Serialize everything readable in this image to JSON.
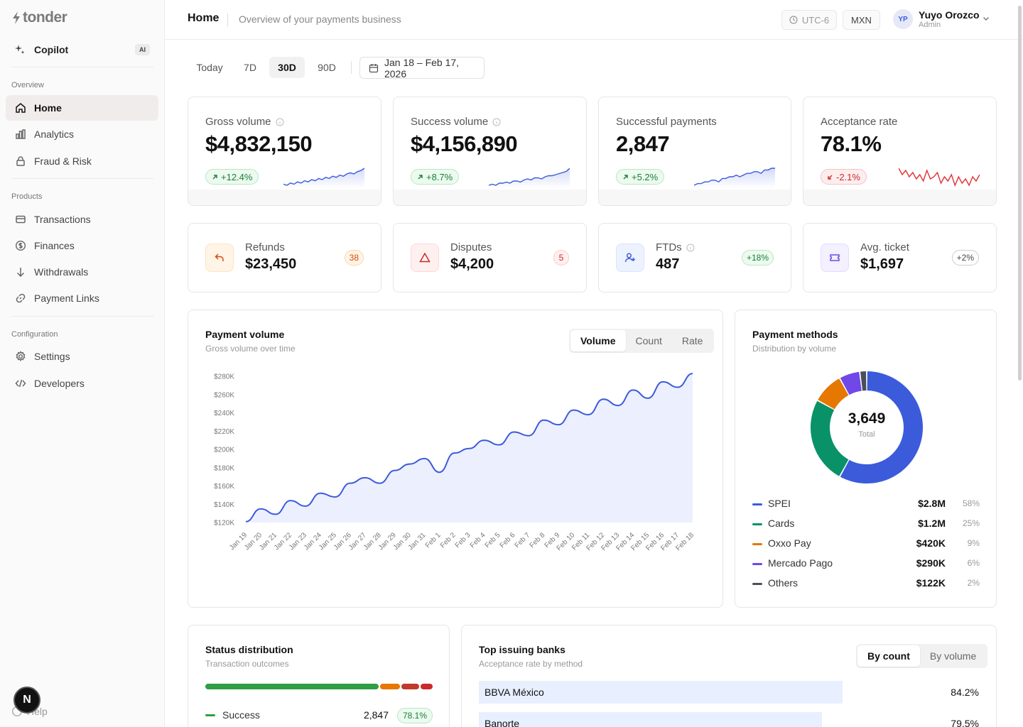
{
  "brand": {
    "name": "tonder"
  },
  "sidebar": {
    "copilot": {
      "label": "Copilot",
      "badge": "AI"
    },
    "sections": [
      {
        "title": "Overview",
        "items": [
          {
            "label": "Home",
            "icon": "home-icon",
            "active": true
          },
          {
            "label": "Analytics",
            "icon": "chart-icon"
          },
          {
            "label": "Fraud & Risk",
            "icon": "lock-icon"
          }
        ]
      },
      {
        "title": "Products",
        "items": [
          {
            "label": "Transactions",
            "icon": "card-icon"
          },
          {
            "label": "Finances",
            "icon": "dollar-icon"
          },
          {
            "label": "Withdrawals",
            "icon": "arrow-down-icon"
          },
          {
            "label": "Payment Links",
            "icon": "link-icon"
          }
        ]
      },
      {
        "title": "Configuration",
        "items": [
          {
            "label": "Settings",
            "icon": "gear-icon"
          },
          {
            "label": "Developers",
            "icon": "code-icon"
          }
        ]
      }
    ],
    "help": "Help",
    "badge_letter": "N"
  },
  "header": {
    "title": "Home",
    "subtitle": "Overview of your payments business",
    "timezone": "UTC-6",
    "currency": "MXN",
    "user": {
      "initials": "YP",
      "name": "Yuyo Orozco",
      "role": "Admin"
    }
  },
  "periods": [
    "Today",
    "7D",
    "30D",
    "90D"
  ],
  "selected_period": "30D",
  "date_range": "Jan 18 – Feb 17, 2026",
  "stats": [
    {
      "label": "Gross volume",
      "value": "$4,832,150",
      "change": "+12.4%",
      "trend": "up",
      "info": true,
      "spark": [
        12,
        11,
        13,
        12,
        14,
        13,
        15,
        14,
        16,
        15,
        17,
        16,
        18,
        17,
        19,
        18,
        20,
        19,
        21,
        22,
        21,
        23,
        24,
        26
      ]
    },
    {
      "label": "Success volume",
      "value": "$4,156,890",
      "change": "+8.7%",
      "trend": "up",
      "info": true,
      "spark": [
        10,
        11,
        10,
        12,
        12,
        13,
        12,
        14,
        14,
        13,
        15,
        16,
        15,
        17,
        17,
        16,
        18,
        19,
        19,
        20,
        21,
        22,
        23,
        26
      ]
    },
    {
      "label": "Successful payments",
      "value": "2,847",
      "change": "+5.2%",
      "trend": "up",
      "info": false,
      "spark": [
        12,
        13,
        13,
        14,
        14,
        15,
        15,
        14,
        16,
        16,
        17,
        17,
        18,
        17,
        18,
        19,
        19,
        20,
        20,
        19,
        21,
        21,
        22,
        22
      ]
    },
    {
      "label": "Acceptance rate",
      "value": "78.1%",
      "change": "-2.1%",
      "trend": "down",
      "info": false,
      "spark": [
        22,
        19,
        21,
        18,
        20,
        17,
        19,
        16,
        21,
        17,
        18,
        20,
        15,
        18,
        16,
        19,
        14,
        18,
        15,
        17,
        14,
        18,
        16,
        19
      ]
    }
  ],
  "mini_stats": [
    {
      "label": "Refunds",
      "value": "$23,450",
      "badge": "38",
      "icon": "undo-icon"
    },
    {
      "label": "Disputes",
      "value": "$4,200",
      "badge": "5",
      "icon": "warning-icon"
    },
    {
      "label": "FTDs",
      "value": "487",
      "badge": "+18%",
      "icon": "user-plus-icon",
      "info": true
    },
    {
      "label": "Avg. ticket",
      "value": "$1,697",
      "badge": "+2%",
      "icon": "ticket-icon"
    }
  ],
  "payment_volume": {
    "title": "Payment volume",
    "subtitle": "Gross volume over time",
    "tabs": [
      "Volume",
      "Count",
      "Rate"
    ],
    "selected_tab": "Volume"
  },
  "chart_data": {
    "type": "area",
    "ylim": [
      120000,
      280000
    ],
    "y_ticks": [
      "$120K",
      "$140K",
      "$160K",
      "$180K",
      "$200K",
      "$220K",
      "$240K",
      "$260K",
      "$280K"
    ],
    "categories": [
      "Jan 19",
      "Jan 20",
      "Jan 21",
      "Jan 22",
      "Jan 23",
      "Jan 24",
      "Jan 25",
      "Jan 26",
      "Jan 27",
      "Jan 28",
      "Jan 29",
      "Jan 30",
      "Jan 31",
      "Feb 1",
      "Feb 2",
      "Feb 3",
      "Feb 4",
      "Feb 5",
      "Feb 6",
      "Feb 7",
      "Feb 8",
      "Feb 9",
      "Feb 10",
      "Feb 11",
      "Feb 12",
      "Feb 13",
      "Feb 14",
      "Feb 15",
      "Feb 16",
      "Feb 17",
      "Feb 18"
    ],
    "values": [
      121000,
      135000,
      129000,
      144000,
      138000,
      152000,
      148000,
      163000,
      169000,
      163000,
      177000,
      184000,
      190000,
      175000,
      196000,
      201000,
      210000,
      205000,
      219000,
      215000,
      232000,
      227000,
      243000,
      238000,
      255000,
      248000,
      265000,
      256000,
      274000,
      268000,
      283000
    ],
    "series_color": "#3b5bdb"
  },
  "payment_methods": {
    "title": "Payment methods",
    "subtitle": "Distribution by volume",
    "total": "3,649",
    "total_label": "Total",
    "items": [
      {
        "name": "SPEI",
        "amount": "$2.8M",
        "pct": "58%",
        "share": 58,
        "color": "#3b5bdb"
      },
      {
        "name": "Cards",
        "amount": "$1.2M",
        "pct": "25%",
        "share": 25,
        "color": "#099268"
      },
      {
        "name": "Oxxo Pay",
        "amount": "$420K",
        "pct": "9%",
        "share": 9,
        "color": "#e67700"
      },
      {
        "name": "Mercado Pago",
        "amount": "$290K",
        "pct": "6%",
        "share": 6,
        "color": "#7048e8"
      },
      {
        "name": "Others",
        "amount": "$122K",
        "pct": "2%",
        "share": 2,
        "color": "#495057"
      }
    ]
  },
  "status_distribution": {
    "title": "Status distribution",
    "subtitle": "Transaction outcomes",
    "rows": [
      {
        "name": "Success",
        "count": "2,847",
        "pct": "78.1%",
        "color": "#2f9e44"
      }
    ]
  },
  "top_banks": {
    "title": "Top issuing banks",
    "subtitle": "Acceptance rate by method",
    "tabs": [
      "By count",
      "By volume"
    ],
    "selected_tab": "By count",
    "rows": [
      {
        "name": "BBVA México",
        "pct": "84.2%",
        "rate": 84.2
      },
      {
        "name": "Banorte",
        "pct": "79.5%",
        "rate": 79.5
      }
    ]
  }
}
